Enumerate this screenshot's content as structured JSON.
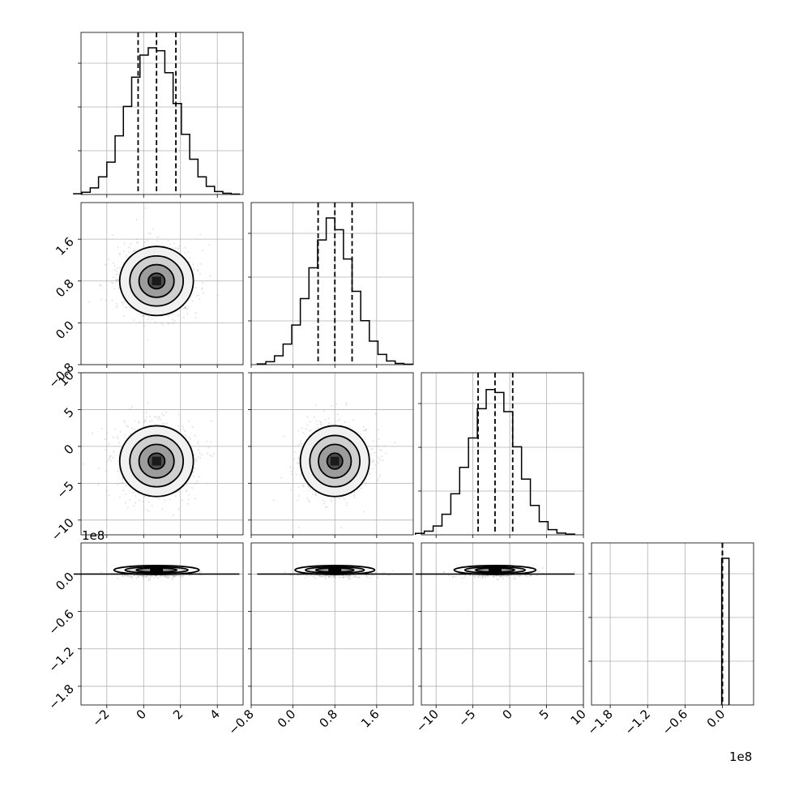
{
  "chart_data": {
    "type": "corner",
    "title": "",
    "n_params": 4,
    "grid": true,
    "params": [
      {
        "ticks": [
          -2,
          0,
          2,
          4
        ],
        "tick_labels": [
          "−2",
          "0",
          "2",
          "4"
        ],
        "range": [
          -3.4,
          5.4
        ],
        "median": 0.7,
        "q16": -0.3,
        "q84": 1.75,
        "center": 0.7,
        "sigma": 1.0,
        "counts": [
          0.005,
          0.015,
          0.045,
          0.12,
          0.22,
          0.4,
          0.6,
          0.8,
          0.95,
          1.0,
          0.98,
          0.83,
          0.62,
          0.41,
          0.24,
          0.12,
          0.055,
          0.02,
          0.008,
          0.003
        ]
      },
      {
        "ticks": [
          -0.8,
          0.0,
          0.8,
          1.6
        ],
        "tick_labels": [
          "−0.8",
          "0.0",
          "0.8",
          "1.6"
        ],
        "range": [
          -0.8,
          2.3
        ],
        "median": 0.8,
        "q16": 0.48,
        "q84": 1.13,
        "center": 0.8,
        "sigma": 0.33,
        "counts": [
          0.005,
          0.02,
          0.06,
          0.14,
          0.27,
          0.45,
          0.66,
          0.85,
          1.0,
          0.92,
          0.72,
          0.5,
          0.3,
          0.16,
          0.07,
          0.025,
          0.008,
          0.003
        ]
      },
      {
        "ticks": [
          -10,
          -5,
          0,
          5,
          10
        ],
        "tick_labels": [
          "−10",
          "−5",
          "0",
          "5",
          "10"
        ],
        "range": [
          -12,
          10
        ],
        "median": -2,
        "q16": -4.3,
        "q84": 0.4,
        "center": -2,
        "sigma": 2.4,
        "counts": [
          0.01,
          0.025,
          0.06,
          0.14,
          0.28,
          0.46,
          0.66,
          0.86,
          0.99,
          0.97,
          0.84,
          0.6,
          0.38,
          0.2,
          0.09,
          0.035,
          0.012,
          0.005
        ]
      },
      {
        "ticks": [
          -180000000,
          -120000000,
          -60000000,
          0
        ],
        "tick_labels": [
          "−1.8",
          "−1.2",
          "−0.6",
          "0.0"
        ],
        "range": [
          -210000000,
          50000000
        ],
        "median": 0,
        "q16": 0,
        "q84": 0,
        "center": 0,
        "sigma": 5000000,
        "offset_label": "1e8",
        "counts": [
          1.0
        ]
      }
    ],
    "y_offset_labels": [
      "1e8"
    ],
    "x_offset_labels": [
      "1e8"
    ]
  }
}
